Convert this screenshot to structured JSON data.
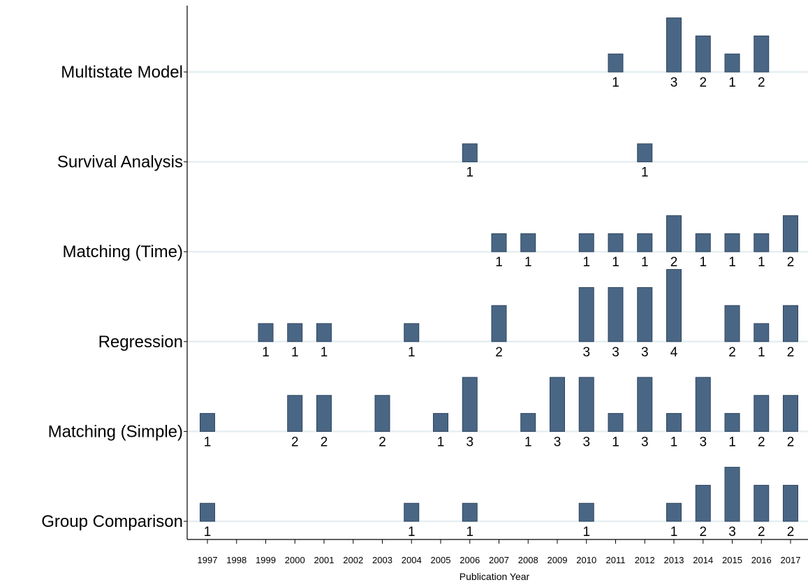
{
  "chart_data": {
    "type": "bar",
    "xlabel": "Publication Year",
    "ylabel": "",
    "title": "",
    "years": [
      "1997",
      "1998",
      "1999",
      "2000",
      "2001",
      "2002",
      "2003",
      "2004",
      "2005",
      "2006",
      "2007",
      "2008",
      "2009",
      "2010",
      "2011",
      "2012",
      "2013",
      "2014",
      "2015",
      "2016",
      "2017"
    ],
    "value_max": 4,
    "grid": true,
    "series": [
      {
        "name": "Multistate Model",
        "points": [
          {
            "year": "2011",
            "value": 1
          },
          {
            "year": "2013",
            "value": 3
          },
          {
            "year": "2014",
            "value": 2
          },
          {
            "year": "2015",
            "value": 1
          },
          {
            "year": "2016",
            "value": 2
          }
        ]
      },
      {
        "name": "Survival Analysis",
        "points": [
          {
            "year": "2006",
            "value": 1
          },
          {
            "year": "2012",
            "value": 1
          }
        ]
      },
      {
        "name": "Matching (Time)",
        "points": [
          {
            "year": "2007",
            "value": 1
          },
          {
            "year": "2008",
            "value": 1
          },
          {
            "year": "2010",
            "value": 1
          },
          {
            "year": "2011",
            "value": 1
          },
          {
            "year": "2012",
            "value": 1
          },
          {
            "year": "2013",
            "value": 2
          },
          {
            "year": "2014",
            "value": 1
          },
          {
            "year": "2015",
            "value": 1
          },
          {
            "year": "2016",
            "value": 1
          },
          {
            "year": "2017",
            "value": 2
          }
        ]
      },
      {
        "name": "Regression",
        "points": [
          {
            "year": "1999",
            "value": 1
          },
          {
            "year": "2000",
            "value": 1
          },
          {
            "year": "2001",
            "value": 1
          },
          {
            "year": "2004",
            "value": 1
          },
          {
            "year": "2007",
            "value": 2
          },
          {
            "year": "2010",
            "value": 3
          },
          {
            "year": "2011",
            "value": 3
          },
          {
            "year": "2012",
            "value": 3
          },
          {
            "year": "2013",
            "value": 4
          },
          {
            "year": "2015",
            "value": 2
          },
          {
            "year": "2016",
            "value": 1
          },
          {
            "year": "2017",
            "value": 2
          }
        ]
      },
      {
        "name": "Matching (Simple)",
        "points": [
          {
            "year": "1997",
            "value": 1
          },
          {
            "year": "2000",
            "value": 2
          },
          {
            "year": "2001",
            "value": 2
          },
          {
            "year": "2003",
            "value": 2
          },
          {
            "year": "2005",
            "value": 1
          },
          {
            "year": "2006",
            "value": 3
          },
          {
            "year": "2008",
            "value": 1
          },
          {
            "year": "2009",
            "value": 3
          },
          {
            "year": "2010",
            "value": 3
          },
          {
            "year": "2011",
            "value": 1
          },
          {
            "year": "2012",
            "value": 3
          },
          {
            "year": "2013",
            "value": 1
          },
          {
            "year": "2014",
            "value": 3
          },
          {
            "year": "2015",
            "value": 1
          },
          {
            "year": "2016",
            "value": 2
          },
          {
            "year": "2017",
            "value": 2
          }
        ]
      },
      {
        "name": "Group Comparison",
        "points": [
          {
            "year": "1997",
            "value": 1
          },
          {
            "year": "2004",
            "value": 1
          },
          {
            "year": "2006",
            "value": 1
          },
          {
            "year": "2010",
            "value": 1
          },
          {
            "year": "2013",
            "value": 1
          },
          {
            "year": "2014",
            "value": 2
          },
          {
            "year": "2015",
            "value": 3
          },
          {
            "year": "2016",
            "value": 2
          },
          {
            "year": "2017",
            "value": 2
          }
        ]
      }
    ],
    "colors": {
      "bar": "#4a6685",
      "bar_stroke": "#2e455e",
      "grid": "#e6eef1",
      "axis": "#000000"
    }
  }
}
